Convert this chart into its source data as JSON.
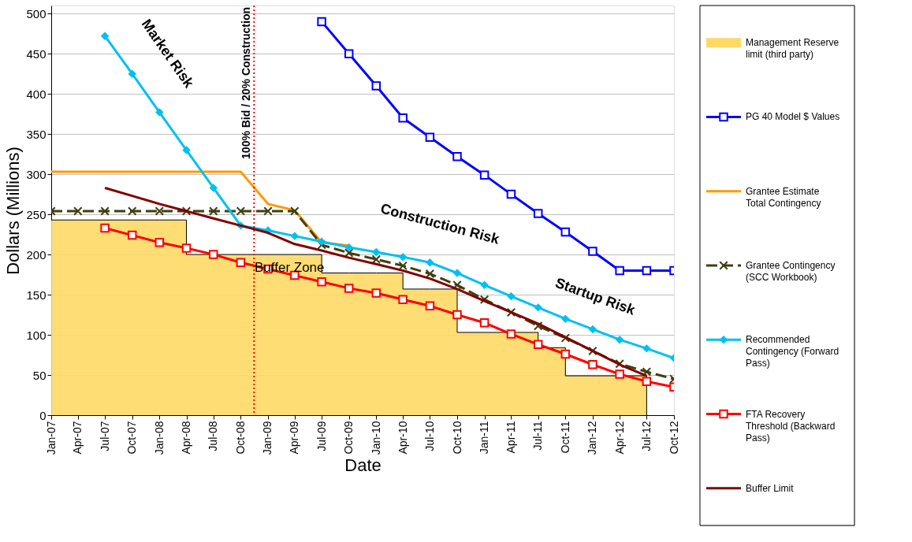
{
  "chart_data": {
    "type": "line",
    "xlabel": "Date",
    "ylabel": "Dollars (Millions)",
    "x": [
      "2007-01",
      "2007-04",
      "2007-07",
      "2007-10",
      "2008-01",
      "2008-04",
      "2008-07",
      "2008-10",
      "2009-01",
      "2009-04",
      "2009-07",
      "2009-10",
      "2010-01",
      "2010-04",
      "2010-07",
      "2010-10",
      "2011-01",
      "2011-04",
      "2011-07",
      "2011-10",
      "2012-01",
      "2012-04",
      "2012-07",
      "2012-10"
    ],
    "xlim": [
      "2007-01",
      "2012-10"
    ],
    "xticks": [
      {
        "value": "2007-01",
        "label": "Jan-07"
      },
      {
        "value": "2007-04",
        "label": "Apr-07"
      },
      {
        "value": "2007-07",
        "label": "Jul-07"
      },
      {
        "value": "2007-10",
        "label": "Oct-07"
      },
      {
        "value": "2008-01",
        "label": "Jan-08"
      },
      {
        "value": "2008-04",
        "label": "Apr-08"
      },
      {
        "value": "2008-07",
        "label": "Jul-08"
      },
      {
        "value": "2008-10",
        "label": "Oct-08"
      },
      {
        "value": "2009-01",
        "label": "Jan-09"
      },
      {
        "value": "2009-04",
        "label": "Apr-09"
      },
      {
        "value": "2009-07",
        "label": "Jul-09"
      },
      {
        "value": "2009-10",
        "label": "Oct-09"
      },
      {
        "value": "2010-01",
        "label": "Jan-10"
      },
      {
        "value": "2010-04",
        "label": "Apr-10"
      },
      {
        "value": "2010-07",
        "label": "Jul-10"
      },
      {
        "value": "2010-10",
        "label": "Oct-10"
      },
      {
        "value": "2011-01",
        "label": "Jan-11"
      },
      {
        "value": "2011-04",
        "label": "Apr-11"
      },
      {
        "value": "2011-07",
        "label": "Jul-11"
      },
      {
        "value": "2011-10",
        "label": "Oct-11"
      },
      {
        "value": "2012-01",
        "label": "Jan-12"
      },
      {
        "value": "2012-04",
        "label": "Apr-12"
      },
      {
        "value": "2012-07",
        "label": "Jul-12"
      },
      {
        "value": "2012-10",
        "label": "Oct-12"
      }
    ],
    "ylim": [
      0,
      510
    ],
    "yticks": [
      0,
      50,
      100,
      150,
      200,
      250,
      300,
      350,
      400,
      450,
      500
    ],
    "grid": "y",
    "legend": "right",
    "series": [
      {
        "name": "Management Reserve limit (third party)",
        "type": "area",
        "color": "#ffd966",
        "values": [
          243,
          243,
          243,
          243,
          243,
          200,
          200,
          200,
          200,
          200,
          177,
          177,
          177,
          157,
          157,
          103,
          103,
          103,
          84,
          49,
          49,
          49,
          0,
          null
        ]
      },
      {
        "name": "PG 40 Model $ Values",
        "color": "#0000ff",
        "marker": "square",
        "values": [
          null,
          null,
          null,
          null,
          null,
          null,
          null,
          null,
          null,
          null,
          490,
          450,
          410,
          370,
          346,
          322,
          299,
          275,
          251,
          228,
          204,
          180,
          180,
          180
        ]
      },
      {
        "name": "Grantee Estimate Total Contingency",
        "color": "#ff9900",
        "values": [
          303,
          303,
          303,
          303,
          303,
          303,
          303,
          303,
          263,
          255,
          215,
          211,
          null,
          null,
          null,
          null,
          null,
          null,
          null,
          null,
          null,
          null,
          null,
          null
        ]
      },
      {
        "name": "Grantee Contingency (SCC Workbook)",
        "color": "#403f10",
        "marker": "cross",
        "line_style": "dashed",
        "values": [
          254,
          254,
          254,
          254,
          254,
          254,
          254,
          254,
          254,
          254,
          212,
          202,
          194,
          186,
          176,
          162,
          144,
          128,
          111,
          96,
          80,
          64,
          54,
          45
        ]
      },
      {
        "name": "Recommended Contingency (Forward Pass)",
        "color": "#00c0f0",
        "marker": "diamond",
        "values": [
          null,
          null,
          472,
          425,
          377,
          330,
          283,
          236,
          230,
          223,
          216,
          209,
          203,
          197,
          190,
          177,
          162,
          148,
          134,
          120,
          107,
          94,
          83,
          71
        ]
      },
      {
        "name": "FTA Recovery Threshold (Backward Pass)",
        "color": "#ff0000",
        "marker": "square",
        "values": [
          null,
          null,
          233,
          224,
          215,
          208,
          200,
          190,
          182,
          174,
          166,
          158,
          152,
          144,
          136,
          125,
          115,
          101,
          88,
          76,
          63,
          51,
          42,
          35
        ]
      },
      {
        "name": "Buffer Limit",
        "color": "#800000",
        "values": [
          null,
          null,
          283,
          273,
          263,
          254,
          245,
          236,
          227,
          213,
          205,
          196,
          188,
          180,
          170,
          157,
          142,
          128,
          114,
          97,
          80,
          63,
          49,
          null
        ]
      }
    ],
    "ref_lines": [
      {
        "axis": "x",
        "value": "2008-11-15",
        "label": "100% Bid / 20% Construction",
        "color": "#ff0000",
        "line_style": "dotted"
      }
    ],
    "annotations": [
      "Market Risk",
      "Construction Risk",
      "Startup Risk",
      "Buffer Zone"
    ]
  }
}
